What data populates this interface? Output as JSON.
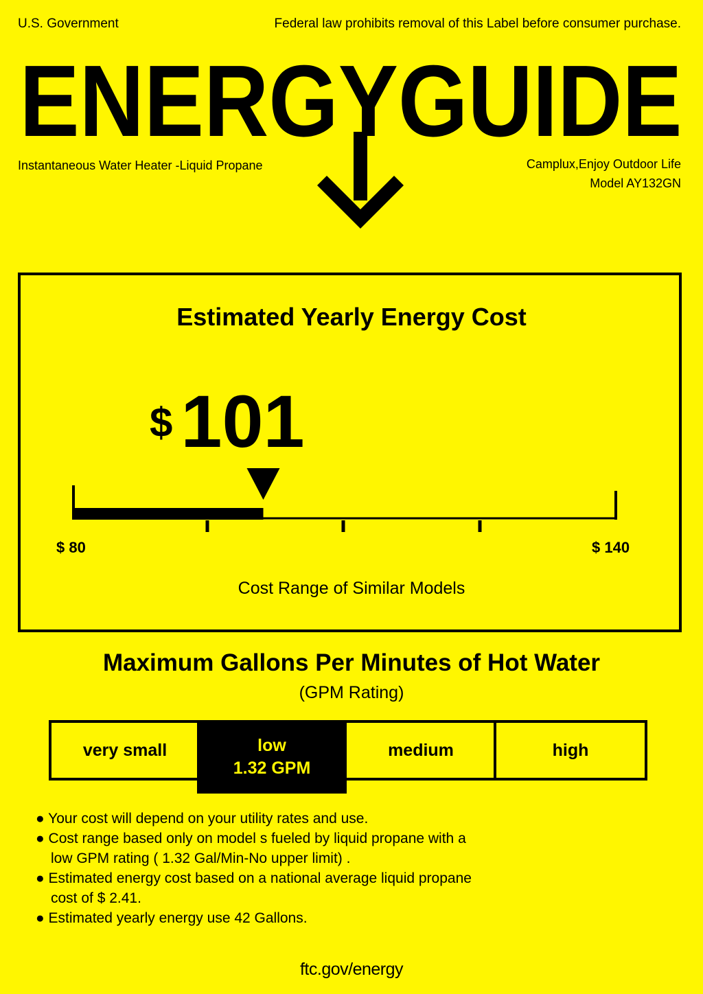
{
  "header": {
    "authority": "U.S. Government",
    "legal_notice": "Federal law prohibits removal of this Label before consumer purchase.",
    "title": "ENERGYGUIDE"
  },
  "product": {
    "type": "Instantaneous Water Heater -Liquid Propane",
    "brand": "Camplux,Enjoy Outdoor Life",
    "model_label": "Model",
    "model_number": "AY132GN"
  },
  "cost": {
    "heading": "Estimated Yearly Energy Cost",
    "currency": "$",
    "value": "101",
    "range_min_label": "$ 80",
    "range_max_label": "$ 140",
    "range_min": 80,
    "range_max": 140,
    "current": 101,
    "caption": "Cost Range of Similar Models"
  },
  "gpm": {
    "heading": "Maximum Gallons Per Minutes of Hot Water",
    "subheading": "(GPM Rating)",
    "categories": [
      "very small",
      "low",
      "medium",
      "high"
    ],
    "active_category": "low",
    "active_value": "1.32 GPM"
  },
  "notes": [
    "Your cost will depend on your utility rates and use.",
    "Cost range based only on model s fueled by liquid propane with a",
    "low GPM rating ( 1.32 Gal/Min-No upper limit) .",
    "Estimated energy cost based on a national average liquid propane",
    "cost of  $ 2.41.",
    "Estimated yearly energy use 42 Gallons."
  ],
  "footer": "ftc.gov/energy",
  "colors": {
    "background": "#fff600",
    "ink": "#000000"
  }
}
